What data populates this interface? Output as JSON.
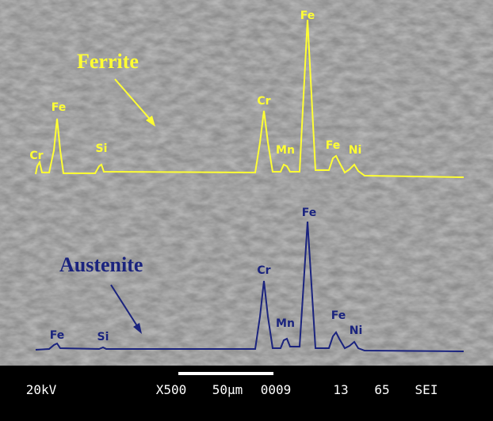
{
  "labels": {
    "ferrite": "Ferrite",
    "austenite": "Austenite"
  },
  "ferrite_peaks": [
    "Cr",
    "Fe",
    "Si",
    "Cr",
    "Mn",
    "Fe",
    "Fe",
    "Ni"
  ],
  "austenite_peaks": [
    "Fe",
    "Si",
    "Cr",
    "Mn",
    "Fe",
    "Fe",
    "Ni"
  ],
  "footer": [
    "20kV",
    "X500",
    "50µm",
    "0009",
    "13",
    "65",
    "SEI"
  ]
}
